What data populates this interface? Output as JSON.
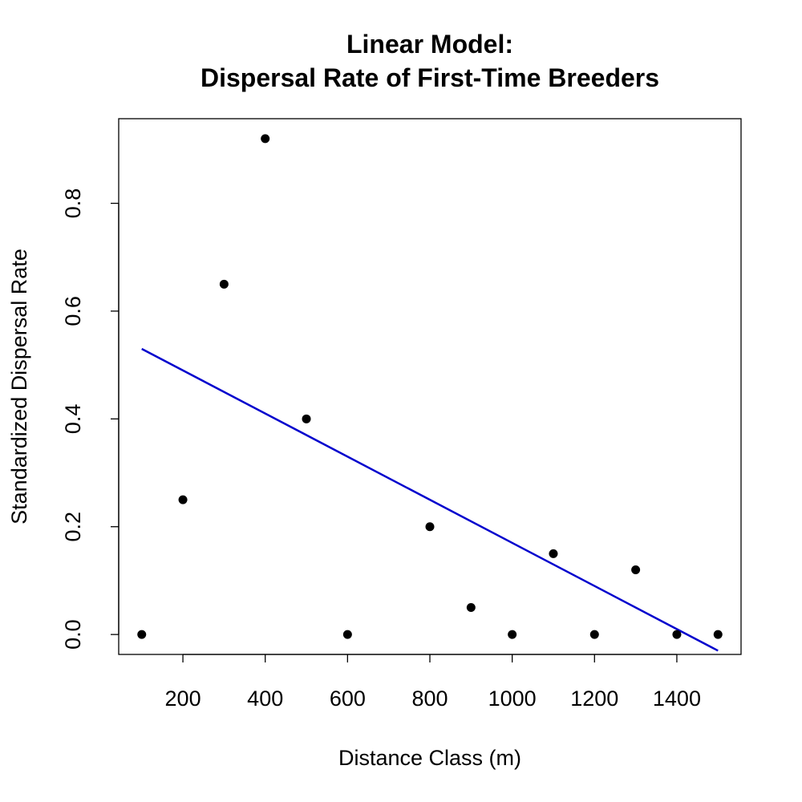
{
  "chart_data": {
    "type": "scatter",
    "title_lines": [
      "Linear Model:",
      "Dispersal Rate of First-Time Breeders"
    ],
    "xlabel": "Distance Class (m)",
    "ylabel": "Standardized Dispersal Rate",
    "xlim": [
      44,
      1556
    ],
    "ylim": [
      -0.037,
      0.957
    ],
    "x_ticks": [
      200,
      400,
      600,
      800,
      1000,
      1200,
      1400
    ],
    "x_tick_labels": [
      "200",
      "400",
      "600",
      "800",
      "1000",
      "1200",
      "1400"
    ],
    "y_ticks": [
      0.0,
      0.2,
      0.4,
      0.6,
      0.8
    ],
    "y_tick_labels": [
      "0.0",
      "0.2",
      "0.4",
      "0.6",
      "0.8"
    ],
    "grid": false,
    "points": [
      {
        "x": 100,
        "y": 0.0
      },
      {
        "x": 200,
        "y": 0.25
      },
      {
        "x": 300,
        "y": 0.65
      },
      {
        "x": 400,
        "y": 0.92
      },
      {
        "x": 500,
        "y": 0.4
      },
      {
        "x": 600,
        "y": 0.0
      },
      {
        "x": 800,
        "y": 0.2
      },
      {
        "x": 900,
        "y": 0.05
      },
      {
        "x": 1000,
        "y": 0.0
      },
      {
        "x": 1100,
        "y": 0.15
      },
      {
        "x": 1200,
        "y": 0.0
      },
      {
        "x": 1300,
        "y": 0.12
      },
      {
        "x": 1400,
        "y": 0.0
      },
      {
        "x": 1500,
        "y": 0.0
      }
    ],
    "fit_line": {
      "type": "linear",
      "start": {
        "x": 100,
        "y": 0.53
      },
      "end": {
        "x": 1500,
        "y": -0.03
      },
      "color": "#0000cd"
    },
    "point_color": "#000000"
  }
}
